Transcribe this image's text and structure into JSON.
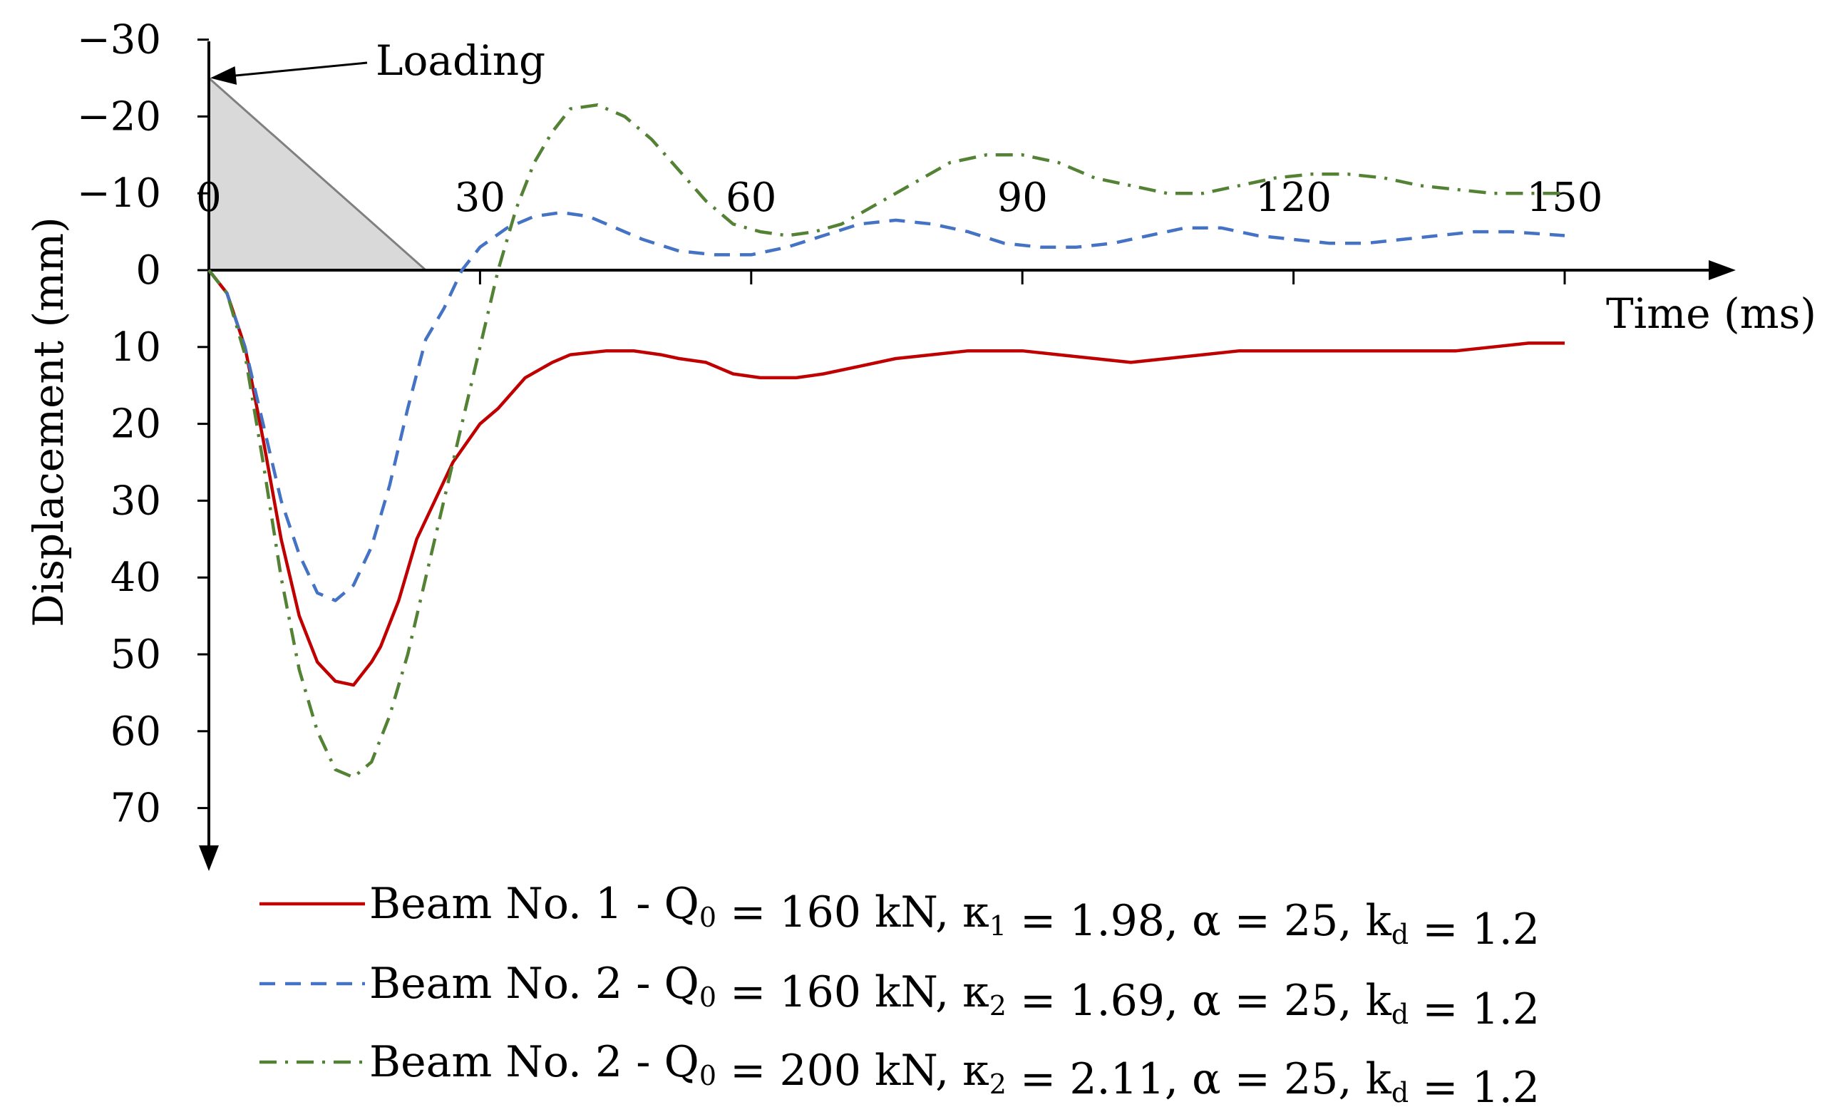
{
  "chart_data": {
    "type": "line",
    "xlabel": "Time (ms)",
    "ylabel": "Displacement (mm)",
    "xlim": [
      0,
      150
    ],
    "ylim": [
      -30,
      70
    ],
    "y_inverted": true,
    "x_ticks": [
      "0",
      "30",
      "60",
      "90",
      "120",
      "150"
    ],
    "x_tick_values": [
      0,
      30,
      60,
      90,
      120,
      150
    ],
    "y_ticks": [
      "−30",
      "−20",
      "−10",
      "0",
      "10",
      "20",
      "30",
      "40",
      "50",
      "60",
      "70"
    ],
    "y_tick_values": [
      -30,
      -20,
      -10,
      0,
      10,
      20,
      30,
      40,
      50,
      60,
      70
    ],
    "grid": false,
    "legend_position": "bottom",
    "annotation": {
      "text": "Loading",
      "shape": "triangle",
      "x": [
        0,
        0,
        24
      ],
      "y": [
        -25,
        0,
        0
      ]
    },
    "series": [
      {
        "name": "Beam No. 1 - Q0 = 160 kN, κ1 = 1.98, α = 25, kd = 1.2",
        "legend": {
          "pre": "Beam No. 1 - Q",
          "s1": "0",
          "mid": " = 160 kN, κ",
          "s2": "1",
          "mid2": " = 1.98, α = 25, k",
          "s3": "d",
          "post": " = 1.2"
        },
        "color": "#c00000",
        "dash": "solid",
        "x": [
          0,
          2,
          4,
          6,
          8,
          10,
          12,
          14,
          16,
          18,
          19,
          21,
          23,
          25,
          27,
          30,
          32,
          35,
          38,
          40,
          44,
          47,
          50,
          52,
          55,
          58,
          61,
          65,
          68,
          72,
          76,
          80,
          84,
          88,
          90,
          94,
          98,
          102,
          106,
          110,
          114,
          118,
          122,
          126,
          130,
          134,
          138,
          142,
          146,
          150
        ],
        "y": [
          0,
          3,
          10,
          22,
          35,
          45,
          51,
          53.5,
          54,
          51,
          49,
          43,
          35,
          30,
          25,
          20,
          18,
          14,
          12,
          11,
          10.5,
          10.5,
          11,
          11.5,
          12,
          13.5,
          14,
          14,
          13.5,
          12.5,
          11.5,
          11,
          10.5,
          10.5,
          10.5,
          11,
          11.5,
          12,
          11.5,
          11,
          10.5,
          10.5,
          10.5,
          10.5,
          10.5,
          10.5,
          10.5,
          10,
          9.5,
          9.5
        ]
      },
      {
        "name": "Beam No. 2 - Q0 = 160 kN, κ2 = 1.69, α = 25, kd = 1.2",
        "legend": {
          "pre": "Beam No. 2 - Q",
          "s1": "0",
          "mid": " = 160 kN, κ",
          "s2": "2",
          "mid2": " = 1.69, α = 25, k",
          "s3": "d",
          "post": " = 1.2"
        },
        "color": "#4472c4",
        "dash": "dashed",
        "x": [
          0,
          2,
          4,
          6,
          8,
          10,
          12,
          14,
          16,
          18,
          20,
          22,
          24,
          26,
          28,
          30,
          33,
          36,
          39,
          42,
          45,
          48,
          52,
          56,
          60,
          64,
          68,
          72,
          76,
          80,
          84,
          88,
          92,
          96,
          100,
          104,
          108,
          112,
          116,
          120,
          124,
          128,
          132,
          136,
          140,
          144,
          150
        ],
        "y": [
          0,
          3,
          10,
          20,
          30,
          37,
          42,
          43,
          41,
          36,
          28,
          18,
          9,
          5,
          0,
          -3,
          -5.5,
          -7,
          -7.5,
          -7,
          -5.5,
          -4,
          -2.5,
          -2,
          -2,
          -3,
          -4.5,
          -6,
          -6.5,
          -6,
          -5,
          -3.5,
          -3,
          -3,
          -3.5,
          -4.5,
          -5.5,
          -5.5,
          -4.5,
          -4,
          -3.5,
          -3.5,
          -4,
          -4.5,
          -5,
          -5,
          -4.5
        ]
      },
      {
        "name": "Beam No. 2 - Q0 = 200 kN, κ2 = 2.11, α = 25, kd = 1.2",
        "legend": {
          "pre": "Beam No. 2 - Q",
          "s1": "0",
          "mid": " = 200 kN, κ",
          "s2": "2",
          "mid2": " = 2.11, α = 25, k",
          "s3": "d",
          "post": " = 1.2"
        },
        "color": "#548235",
        "dash": "dashdot",
        "x": [
          0,
          2,
          4,
          6,
          8,
          10,
          12,
          14,
          16,
          18,
          20,
          22,
          24,
          26,
          28,
          30,
          32,
          34,
          36,
          38,
          40,
          43,
          46,
          49,
          52,
          55,
          58,
          61,
          64,
          67,
          70,
          73,
          76,
          79,
          82,
          86,
          90,
          94,
          98,
          102,
          106,
          110,
          114,
          118,
          122,
          126,
          130,
          134,
          138,
          142,
          146,
          150
        ],
        "y": [
          0,
          3,
          11,
          25,
          40,
          52,
          60,
          65,
          66,
          64,
          58,
          50,
          40,
          30,
          20,
          10,
          0,
          -8,
          -14,
          -18,
          -21,
          -21.5,
          -20,
          -17,
          -13,
          -9,
          -6,
          -5,
          -4.5,
          -5,
          -6,
          -8,
          -10,
          -12,
          -14,
          -15,
          -15,
          -14,
          -12,
          -11,
          -10,
          -10,
          -11,
          -12,
          -12.5,
          -12.5,
          -12,
          -11,
          -10.5,
          -10,
          -10,
          -10
        ]
      }
    ]
  }
}
